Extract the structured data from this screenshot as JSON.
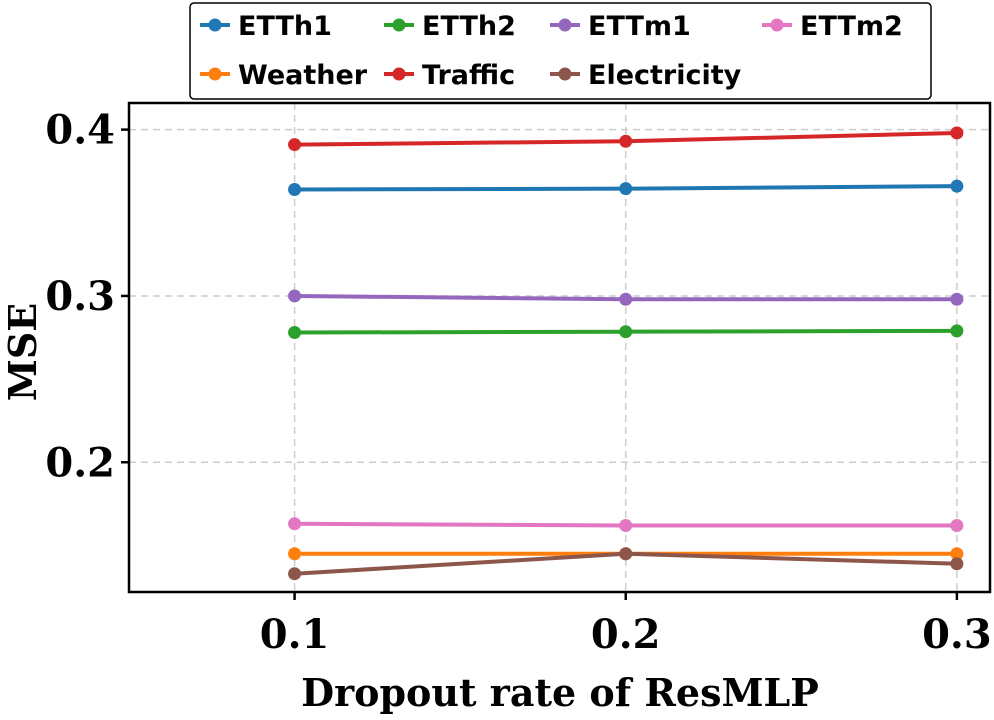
{
  "chart_data": {
    "type": "line",
    "title": "",
    "xlabel": "Dropout rate of ResMLP",
    "ylabel": "MSE",
    "x": [
      0.1,
      0.2,
      0.3
    ],
    "xtick_labels": [
      "0.1",
      "0.2",
      "0.3"
    ],
    "yticks": [
      0.2,
      0.3,
      0.4
    ],
    "ytick_labels": [
      "0.2",
      "0.3",
      "0.4"
    ],
    "xlim": [
      0.05,
      0.31
    ],
    "ylim": [
      0.122,
      0.416
    ],
    "grid": true,
    "legend_position": "top-center",
    "series": [
      {
        "name": "ETTh1",
        "color": "#1f77b4",
        "values": [
          0.364,
          0.3645,
          0.366
        ]
      },
      {
        "name": "ETTh2",
        "color": "#2ca02c",
        "values": [
          0.278,
          0.2785,
          0.279
        ]
      },
      {
        "name": "ETTm1",
        "color": "#9467bd",
        "values": [
          0.3,
          0.298,
          0.298
        ]
      },
      {
        "name": "ETTm2",
        "color": "#e377c2",
        "values": [
          0.163,
          0.162,
          0.162
        ]
      },
      {
        "name": "Weather",
        "color": "#ff7f0e",
        "values": [
          0.145,
          0.145,
          0.145
        ]
      },
      {
        "name": "Traffic",
        "color": "#d62728",
        "values": [
          0.391,
          0.393,
          0.398
        ]
      },
      {
        "name": "Electricity",
        "color": "#8c564b",
        "values": [
          0.133,
          0.145,
          0.139
        ]
      }
    ]
  }
}
